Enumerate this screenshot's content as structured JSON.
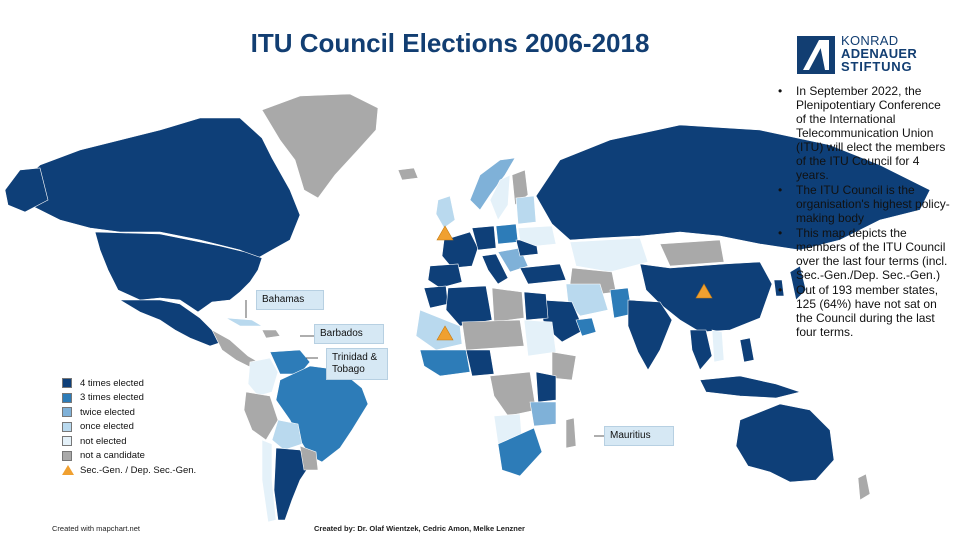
{
  "title": "ITU Council Elections 2006-2018",
  "logo": {
    "line1": "KONRAD",
    "line2": "ADENAUER",
    "line3": "STIFTUNG"
  },
  "colors": {
    "four_times": "#0e3f78",
    "three_times": "#2d7cb8",
    "twice": "#7fb1d8",
    "once": "#b9d9ee",
    "not_elected": "#e4f1f9",
    "not_candidate": "#a9a9a9",
    "secgen": "#f0a030",
    "callout_bg": "#d6e8f4"
  },
  "bullets": [
    "In September 2022, the Plenipotentiary Conference of the International Telecommunication Union (ITU) will elect the members of the ITU Council for 4 years.",
    "The ITU Council is the organisation's highest policy-making body",
    "This map depicts the members of the ITU Council over the last four terms (incl. Sec.-Gen./Dep. Sec.-Gen.)",
    "Out of 193 member states, 125 (64%) have not sat on the Council during the last four terms."
  ],
  "callouts": {
    "bahamas": "Bahamas",
    "barbados": "Barbados",
    "trinidad": "Trinidad & Tobago",
    "mauritius": "Mauritius"
  },
  "legend": [
    {
      "label": "4 times elected",
      "color": "#0e3f78"
    },
    {
      "label": "3 times elected",
      "color": "#2d7cb8"
    },
    {
      "label": "twice elected",
      "color": "#7fb1d8"
    },
    {
      "label": "once elected",
      "color": "#b9d9ee"
    },
    {
      "label": "not elected",
      "color": "#e4f1f9"
    },
    {
      "label": "not a candidate",
      "color": "#a9a9a9"
    }
  ],
  "legend_secgen": "Sec.-Gen. / Dep. Sec.-Gen.",
  "footer_left": "Created with mapchart.net",
  "footer_center": "Created by: Dr. Olaf Wientzek, Cedric Amon, Melke Lenzner"
}
